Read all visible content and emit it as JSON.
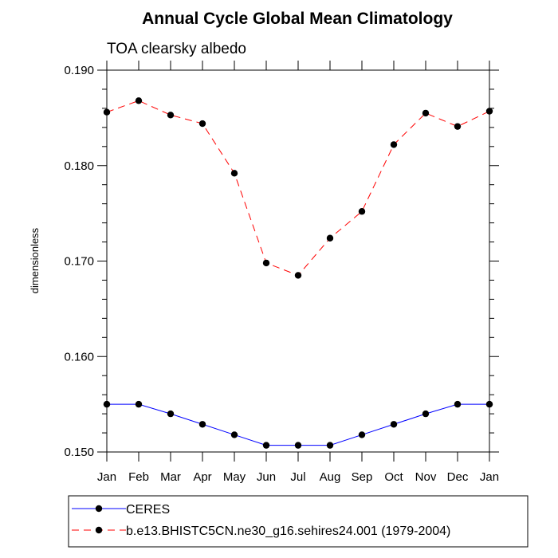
{
  "chart_data": {
    "type": "line",
    "title": "Annual Cycle Global Mean Climatology",
    "subtitle": "TOA clearsky albedo",
    "ylabel": "dimensionless",
    "xlabel": "",
    "categories": [
      "Jan",
      "Feb",
      "Mar",
      "Apr",
      "May",
      "Jun",
      "Jul",
      "Aug",
      "Sep",
      "Oct",
      "Nov",
      "Dec",
      "Jan"
    ],
    "ylim": [
      0.15,
      0.19
    ],
    "yticks": [
      "0.150",
      "0.160",
      "0.170",
      "0.180",
      "0.190"
    ],
    "grid": false,
    "legend_position": "bottom",
    "series": [
      {
        "name": "CERES",
        "color": "#0000ff",
        "line_style": "solid",
        "marker": "filled-circle",
        "values": [
          0.155,
          0.155,
          0.154,
          0.1529,
          0.1518,
          0.1507,
          0.1507,
          0.1507,
          0.1518,
          0.1529,
          0.154,
          0.155,
          0.155
        ]
      },
      {
        "name": "b.e13.BHISTC5CN.ne30_g16.sehires24.001 (1979-2004)",
        "color": "#ff0000",
        "line_style": "dashed",
        "marker": "filled-circle",
        "values": [
          0.1856,
          0.1868,
          0.1853,
          0.1844,
          0.1792,
          0.1698,
          0.1685,
          0.1724,
          0.1752,
          0.1822,
          0.1855,
          0.1841,
          0.1857
        ]
      }
    ]
  }
}
